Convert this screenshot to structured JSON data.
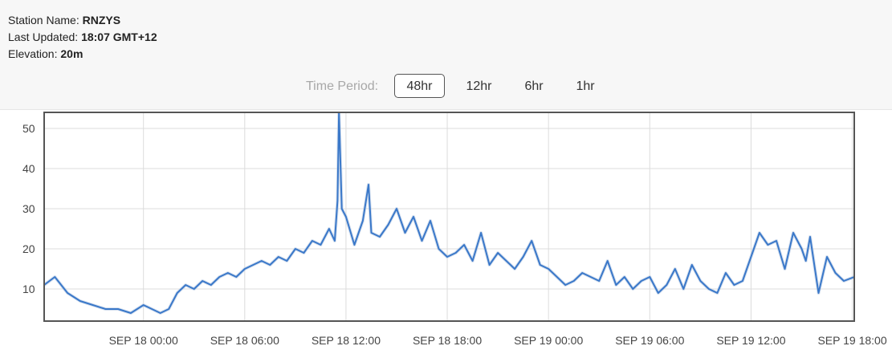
{
  "station": {
    "name_label": "Station Name:",
    "name_value": "RNZYS",
    "updated_label": "Last Updated:",
    "updated_value": "18:07 GMT+12",
    "elevation_label": "Elevation:",
    "elevation_value": "20m"
  },
  "time_period": {
    "label": "Time Period:",
    "options": [
      "48hr",
      "12hr",
      "6hr",
      "1hr"
    ],
    "selected": "48hr"
  },
  "colors": {
    "line": "#3a78c9",
    "grid": "#dcdcdc",
    "frame": "#555555",
    "header_bg": "#f7f7f7"
  },
  "chart_data": {
    "type": "line",
    "title": "",
    "xlabel": "",
    "ylabel": "",
    "ylim": [
      2,
      54
    ],
    "yticks": [
      10,
      20,
      30,
      40,
      50
    ],
    "x_tick_labels": [
      "SEP 18 00:00",
      "SEP 18 06:00",
      "SEP 18 12:00",
      "SEP 18 18:00",
      "SEP 19 00:00",
      "SEP 19 06:00",
      "SEP 19 12:00",
      "SEP 19 18:00"
    ],
    "x_ticks": [
      "2024-09-18 00:00",
      "2024-09-18 06:00",
      "2024-09-18 12:00",
      "2024-09-18 18:00",
      "2024-09-19 00:00",
      "2024-09-19 06:00",
      "2024-09-19 12:00",
      "2024-09-19 18:00"
    ],
    "xlim": [
      "2024-09-17 18:07",
      "2024-09-19 18:07"
    ],
    "grid": true,
    "legend": "none",
    "series": [
      {
        "name": "",
        "x": [
          "2024-09-17 18:07",
          "2024-09-17 18:45",
          "2024-09-17 19:30",
          "2024-09-17 20:15",
          "2024-09-17 21:00",
          "2024-09-17 21:45",
          "2024-09-17 22:30",
          "2024-09-17 23:15",
          "2024-09-18 00:00",
          "2024-09-18 00:30",
          "2024-09-18 01:00",
          "2024-09-18 01:30",
          "2024-09-18 02:00",
          "2024-09-18 02:30",
          "2024-09-18 03:00",
          "2024-09-18 03:30",
          "2024-09-18 04:00",
          "2024-09-18 04:30",
          "2024-09-18 05:00",
          "2024-09-18 05:30",
          "2024-09-18 06:00",
          "2024-09-18 06:30",
          "2024-09-18 07:00",
          "2024-09-18 07:30",
          "2024-09-18 08:00",
          "2024-09-18 08:30",
          "2024-09-18 09:00",
          "2024-09-18 09:30",
          "2024-09-18 10:00",
          "2024-09-18 10:30",
          "2024-09-18 11:00",
          "2024-09-18 11:20",
          "2024-09-18 11:30",
          "2024-09-18 11:35",
          "2024-09-18 11:45",
          "2024-09-18 12:00",
          "2024-09-18 12:30",
          "2024-09-18 13:00",
          "2024-09-18 13:20",
          "2024-09-18 13:30",
          "2024-09-18 14:00",
          "2024-09-18 14:30",
          "2024-09-18 15:00",
          "2024-09-18 15:30",
          "2024-09-18 16:00",
          "2024-09-18 16:30",
          "2024-09-18 17:00",
          "2024-09-18 17:30",
          "2024-09-18 18:00",
          "2024-09-18 18:30",
          "2024-09-18 19:00",
          "2024-09-18 19:30",
          "2024-09-18 20:00",
          "2024-09-18 20:30",
          "2024-09-18 21:00",
          "2024-09-18 21:30",
          "2024-09-18 22:00",
          "2024-09-18 22:30",
          "2024-09-18 23:00",
          "2024-09-18 23:30",
          "2024-09-19 00:00",
          "2024-09-19 00:30",
          "2024-09-19 01:00",
          "2024-09-19 01:30",
          "2024-09-19 02:00",
          "2024-09-19 02:30",
          "2024-09-19 03:00",
          "2024-09-19 03:30",
          "2024-09-19 04:00",
          "2024-09-19 04:30",
          "2024-09-19 05:00",
          "2024-09-19 05:30",
          "2024-09-19 06:00",
          "2024-09-19 06:30",
          "2024-09-19 07:00",
          "2024-09-19 07:30",
          "2024-09-19 08:00",
          "2024-09-19 08:30",
          "2024-09-19 09:00",
          "2024-09-19 09:30",
          "2024-09-19 10:00",
          "2024-09-19 10:30",
          "2024-09-19 11:00",
          "2024-09-19 11:30",
          "2024-09-19 12:00",
          "2024-09-19 12:30",
          "2024-09-19 13:00",
          "2024-09-19 13:30",
          "2024-09-19 14:00",
          "2024-09-19 14:30",
          "2024-09-19 15:00",
          "2024-09-19 15:15",
          "2024-09-19 15:30",
          "2024-09-19 16:00",
          "2024-09-19 16:30",
          "2024-09-19 17:00",
          "2024-09-19 17:30",
          "2024-09-19 18:07"
        ],
        "values": [
          11,
          13,
          9,
          7,
          6,
          5,
          5,
          4,
          6,
          5,
          4,
          5,
          9,
          11,
          10,
          12,
          11,
          13,
          14,
          13,
          15,
          16,
          17,
          16,
          18,
          17,
          20,
          19,
          22,
          21,
          25,
          22,
          32,
          54,
          30,
          28,
          21,
          27,
          36,
          24,
          23,
          26,
          30,
          24,
          28,
          22,
          27,
          20,
          18,
          19,
          21,
          17,
          24,
          16,
          19,
          17,
          15,
          18,
          22,
          16,
          15,
          13,
          11,
          12,
          14,
          13,
          12,
          17,
          11,
          13,
          10,
          12,
          13,
          9,
          11,
          15,
          10,
          16,
          12,
          10,
          9,
          14,
          11,
          12,
          18,
          24,
          21,
          22,
          15,
          24,
          20,
          17,
          23,
          9,
          18,
          14,
          12,
          13
        ]
      }
    ]
  }
}
